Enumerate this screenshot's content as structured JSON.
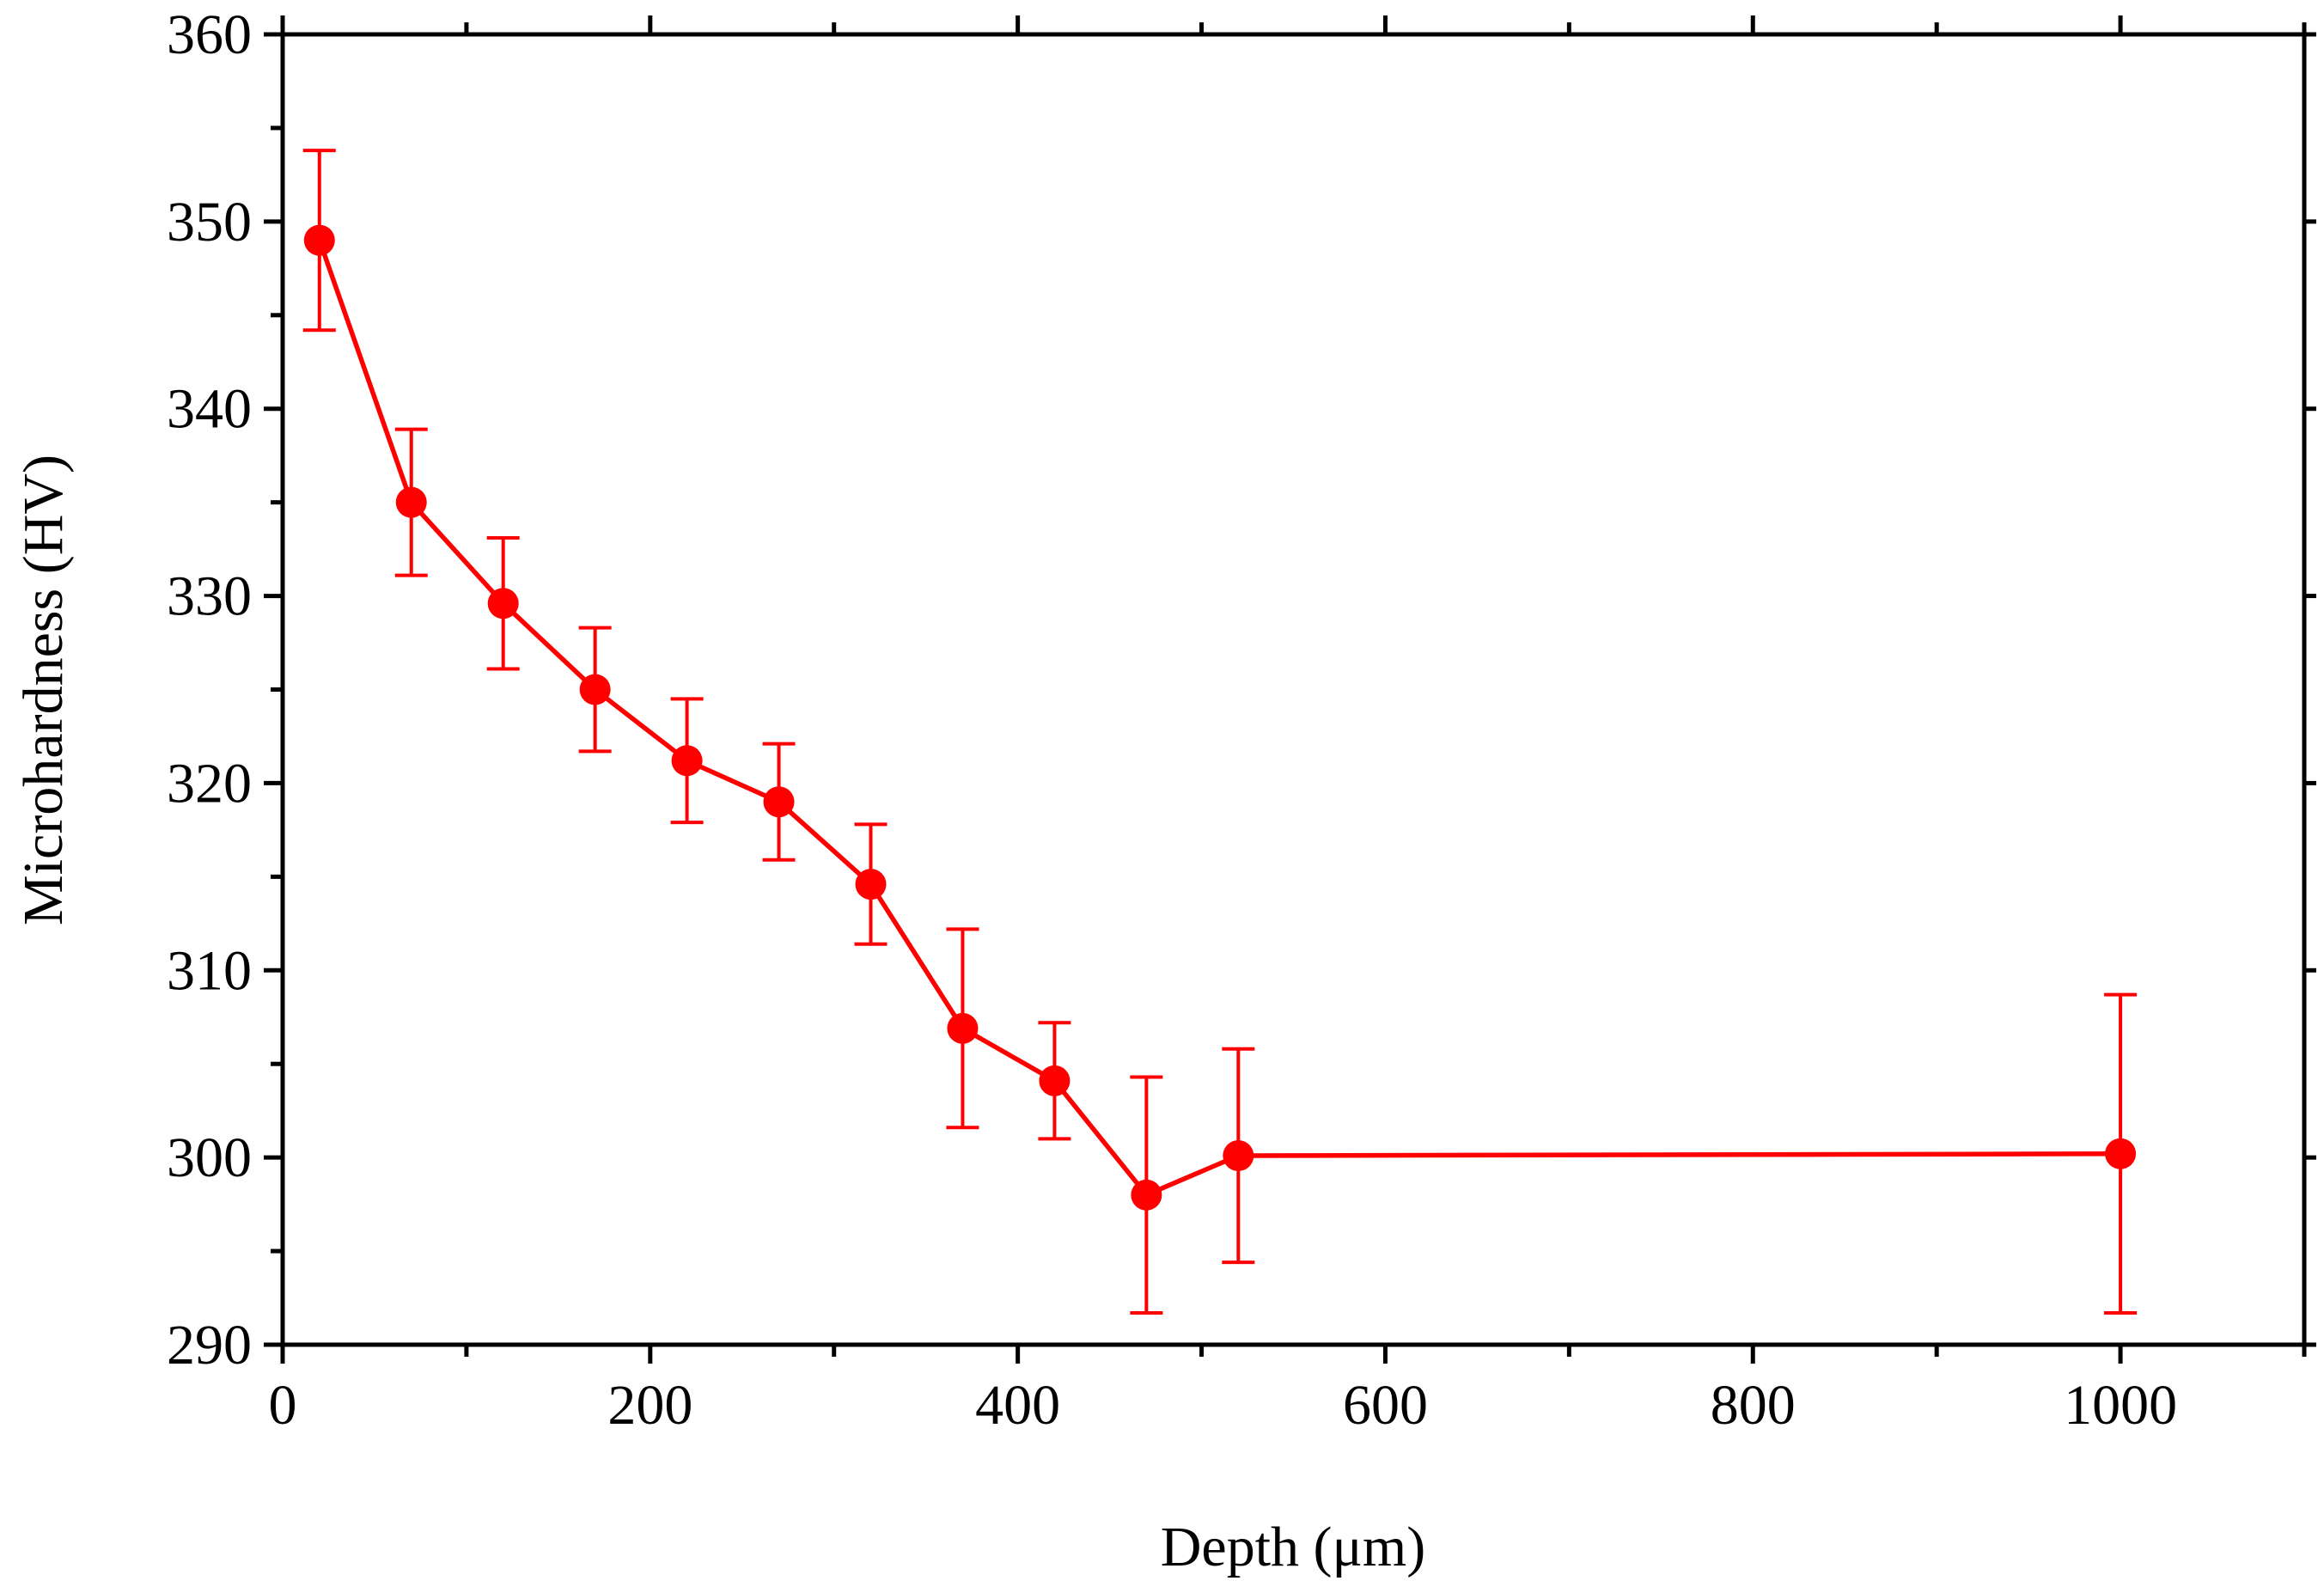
{
  "chart_data": {
    "type": "scatter",
    "title": "",
    "xlabel": "Depth (μm)",
    "ylabel": "Microhardness (HV)",
    "xlim": [
      0,
      1100
    ],
    "ylim": [
      290,
      360
    ],
    "x_ticks": [
      0,
      200,
      400,
      600,
      800,
      1000
    ],
    "x_tick_labels": [
      "0",
      "200",
      "400",
      "600",
      "800",
      "1000"
    ],
    "x_minor_step": 100,
    "y_ticks": [
      290,
      300,
      310,
      320,
      330,
      340,
      350,
      360
    ],
    "y_tick_labels": [
      "290",
      "300",
      "310",
      "320",
      "330",
      "340",
      "350",
      "360"
    ],
    "y_minor_step": 5,
    "grid": false,
    "legend": "none",
    "series": [
      {
        "color": "#ff0000",
        "marker": "circle",
        "line": true,
        "error_bars": true,
        "points": [
          {
            "x": 20,
            "y": 349.0,
            "err": 4.8
          },
          {
            "x": 70,
            "y": 335.0,
            "err": 3.9
          },
          {
            "x": 120,
            "y": 329.6,
            "err": 3.5
          },
          {
            "x": 170,
            "y": 325.0,
            "err": 3.3
          },
          {
            "x": 220,
            "y": 321.2,
            "err": 3.3
          },
          {
            "x": 270,
            "y": 319.0,
            "err": 3.1
          },
          {
            "x": 320,
            "y": 314.6,
            "err": 3.2
          },
          {
            "x": 370,
            "y": 306.9,
            "err": 5.3
          },
          {
            "x": 420,
            "y": 304.1,
            "err": 3.1
          },
          {
            "x": 470,
            "y": 298.0,
            "err": 6.3
          },
          {
            "x": 520,
            "y": 300.1,
            "err": 5.7
          },
          {
            "x": 1000,
            "y": 300.2,
            "err": 8.5
          }
        ]
      }
    ]
  }
}
